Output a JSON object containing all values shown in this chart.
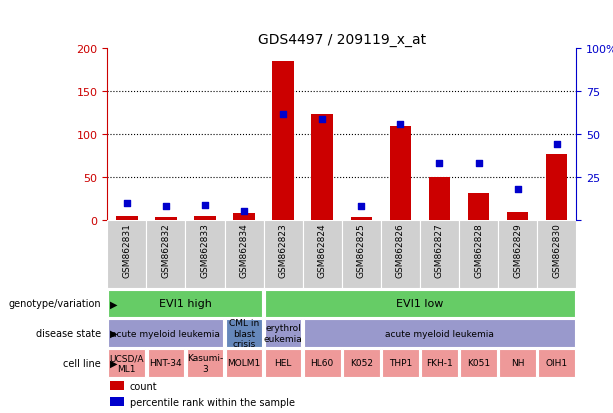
{
  "title": "GDS4497 / 209119_x_at",
  "samples": [
    "GSM862831",
    "GSM862832",
    "GSM862833",
    "GSM862834",
    "GSM862823",
    "GSM862824",
    "GSM862825",
    "GSM862826",
    "GSM862827",
    "GSM862828",
    "GSM862829",
    "GSM862830"
  ],
  "counts": [
    5,
    3,
    5,
    8,
    185,
    124,
    4,
    110,
    50,
    31,
    9,
    77
  ],
  "percentiles": [
    10,
    8,
    9,
    5,
    62,
    59,
    8,
    56,
    33,
    33,
    18,
    44
  ],
  "ylim_left": [
    0,
    200
  ],
  "yticks_left": [
    0,
    50,
    100,
    150,
    200
  ],
  "yticks_right": [
    0,
    25,
    50,
    75,
    100
  ],
  "bar_color": "#cc0000",
  "dot_color": "#0000cc",
  "bg_color": "#ffffff",
  "xticklabel_bg": "#c8c8c8",
  "left_axis_color": "#cc0000",
  "right_axis_color": "#0000cc",
  "genotype_groups": [
    {
      "text": "EVI1 high",
      "start": 0,
      "end": 4,
      "color": "#66cc66"
    },
    {
      "text": "EVI1 low",
      "start": 4,
      "end": 12,
      "color": "#66cc66"
    }
  ],
  "disease_groups": [
    {
      "text": "acute myeloid leukemia",
      "start": 0,
      "end": 3,
      "color": "#9999cc"
    },
    {
      "text": "CML in\nblast\ncrisis",
      "start": 3,
      "end": 4,
      "color": "#6688bb"
    },
    {
      "text": "erythrol\neukemia",
      "start": 4,
      "end": 5,
      "color": "#9999cc"
    },
    {
      "text": "acute myeloid leukemia",
      "start": 5,
      "end": 12,
      "color": "#9999cc"
    }
  ],
  "cellline_groups": [
    {
      "text": "UCSD/A\nML1",
      "start": 0,
      "end": 1,
      "color": "#ee9999"
    },
    {
      "text": "HNT-34",
      "start": 1,
      "end": 2,
      "color": "#ee9999"
    },
    {
      "text": "Kasumi-\n3",
      "start": 2,
      "end": 3,
      "color": "#ee9999"
    },
    {
      "text": "MOLM1",
      "start": 3,
      "end": 4,
      "color": "#ee9999"
    },
    {
      "text": "HEL",
      "start": 4,
      "end": 5,
      "color": "#ee9999"
    },
    {
      "text": "HL60",
      "start": 5,
      "end": 6,
      "color": "#ee9999"
    },
    {
      "text": "K052",
      "start": 6,
      "end": 7,
      "color": "#ee9999"
    },
    {
      "text": "THP1",
      "start": 7,
      "end": 8,
      "color": "#ee9999"
    },
    {
      "text": "FKH-1",
      "start": 8,
      "end": 9,
      "color": "#ee9999"
    },
    {
      "text": "K051",
      "start": 9,
      "end": 10,
      "color": "#ee9999"
    },
    {
      "text": "NH",
      "start": 10,
      "end": 11,
      "color": "#ee9999"
    },
    {
      "text": "OIH1",
      "start": 11,
      "end": 12,
      "color": "#ee9999"
    }
  ],
  "row_labels": [
    "genotype/variation",
    "disease state",
    "cell line"
  ],
  "legend_items": [
    {
      "color": "#cc0000",
      "label": "count"
    },
    {
      "color": "#0000cc",
      "label": "percentile rank within the sample"
    }
  ]
}
